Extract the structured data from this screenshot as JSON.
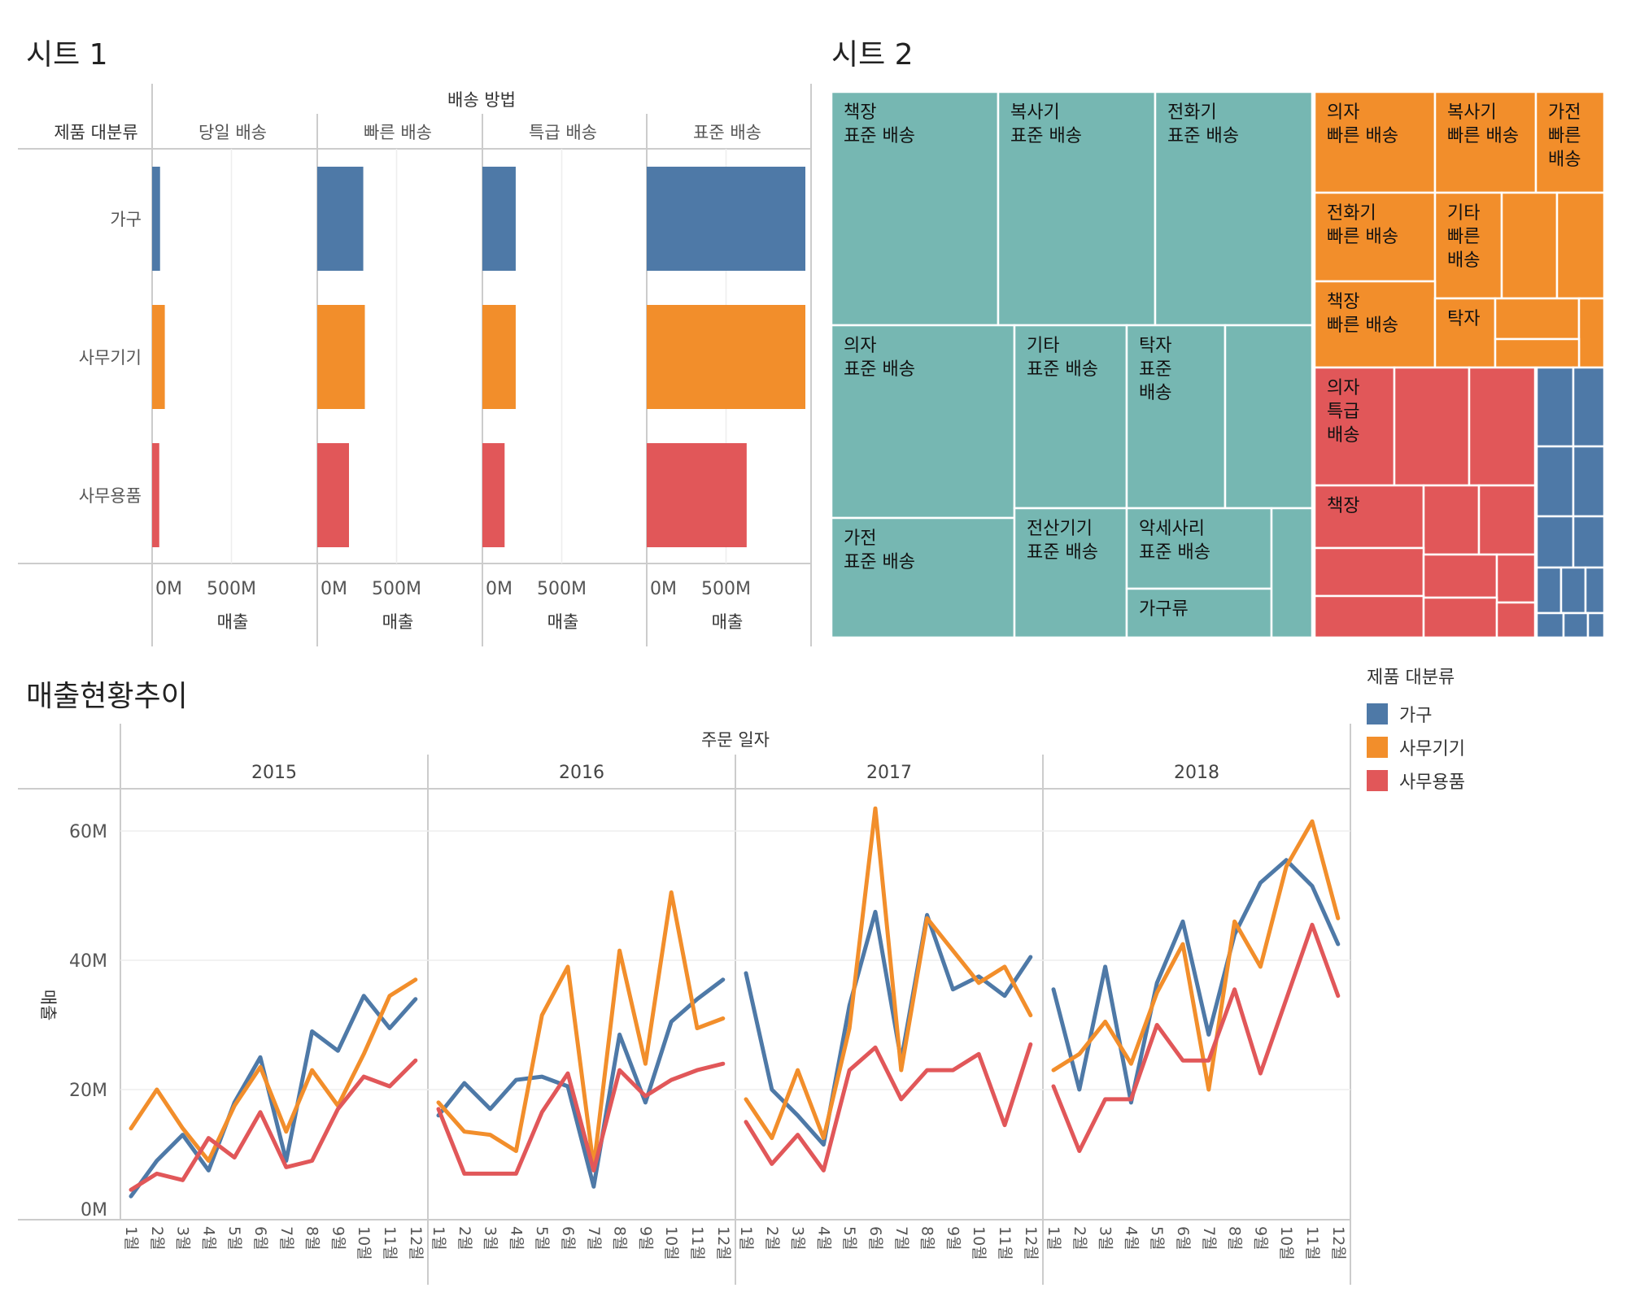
{
  "titles": {
    "sheet1": "시트 1",
    "sheet2": "시트 2",
    "sheet3": "매출현황추이"
  },
  "colors": {
    "furniture": "#4e79a7",
    "office_machines": "#f28e2b",
    "office_supplies": "#e15759",
    "treemap_standard": "#76b7b2"
  },
  "chart_data": [
    {
      "type": "bar",
      "column_header": "배송 방법",
      "row_header": "제품 대분류",
      "panels": [
        "당일 배송",
        "빠른 배송",
        "특급 배송",
        "표준 배송"
      ],
      "categories": [
        "가구",
        "사무기기",
        "사무용품"
      ],
      "values": [
        [
          50,
          290,
          210,
          1000
        ],
        [
          80,
          300,
          210,
          1000
        ],
        [
          45,
          200,
          140,
          630
        ]
      ],
      "xticks": [
        "0M",
        "500M"
      ],
      "xlabel": "매출",
      "xlim": [
        0,
        1050
      ]
    },
    {
      "type": "treemap",
      "groups": [
        {
          "category": "가구",
          "cells": [
            {
              "label": "책장\n표준 배송"
            },
            {
              "label": "복사기\n표준 배송"
            },
            {
              "label": "전화기\n표준 배송"
            },
            {
              "label": "의자\n표준 배송"
            },
            {
              "label": "기타\n표준 배송"
            },
            {
              "label": "탁자\n표준\n배송"
            },
            {
              "label": "가전\n표준 배송"
            },
            {
              "label": "전산기기\n표준 배송"
            },
            {
              "label": "악세사리\n표준 배송"
            },
            {
              "label": "가구류"
            }
          ]
        },
        {
          "category": "사무기기",
          "cells": [
            {
              "label": "의자\n빠른 배송"
            },
            {
              "label": "복사기\n빠른 배송"
            },
            {
              "label": "가전\n빠른\n배송"
            },
            {
              "label": "전화기\n빠른 배송"
            },
            {
              "label": "기타\n빠른\n배송"
            },
            {
              "label": "책장\n빠른 배송"
            },
            {
              "label": "탁자"
            }
          ]
        },
        {
          "category": "사무용품",
          "cells": [
            {
              "label": "의자\n특급\n배송"
            },
            {
              "label": "책장"
            }
          ]
        }
      ]
    },
    {
      "type": "line",
      "column_header": "주문 일자",
      "years": [
        "2015",
        "2016",
        "2017",
        "2018"
      ],
      "months": [
        "1월",
        "2월",
        "3월",
        "4월",
        "5월",
        "6월",
        "7월",
        "8월",
        "9월",
        "10월",
        "11월",
        "12월"
      ],
      "ylabel": "매출",
      "yticks": [
        "0M",
        "20M",
        "40M",
        "60M"
      ],
      "ylim": [
        0,
        70
      ],
      "series": [
        {
          "name": "가구",
          "values": [
            [
              3.5,
              9,
              13,
              7.5,
              18,
              25,
              9,
              29,
              26,
              34.5,
              29.5,
              34
            ],
            [
              16,
              21,
              17,
              21.5,
              22,
              20.5,
              5,
              28.5,
              18,
              30.5,
              34,
              37
            ],
            [
              38,
              20,
              16,
              11.5,
              33,
              47.5,
              24.5,
              47,
              35.5,
              37.5,
              34.5,
              40.5
            ],
            [
              35.5,
              20,
              39,
              18,
              36.5,
              46,
              28.5,
              44,
              52,
              55.5,
              51.5,
              42.5
            ]
          ]
        },
        {
          "name": "사무기기",
          "values": [
            [
              14,
              20,
              14,
              9,
              17.5,
              23.5,
              13.5,
              23,
              17.5,
              25.5,
              34.5,
              37
            ],
            [
              18,
              13.5,
              13,
              10.5,
              31.5,
              39,
              8,
              41.5,
              24,
              50.5,
              29.5,
              31
            ],
            [
              18.5,
              12.5,
              23,
              12.5,
              29.5,
              63.5,
              23,
              46.5,
              41.5,
              36.5,
              39,
              31.5
            ],
            [
              23,
              25.5,
              30.5,
              24,
              35,
              42.5,
              20,
              46,
              39,
              54.5,
              61.5,
              46.5
            ]
          ]
        },
        {
          "name": "사무용품",
          "values": [
            [
              4.5,
              7,
              6,
              12.5,
              9.5,
              16.5,
              8,
              9,
              17,
              22,
              20.5,
              24.5
            ],
            [
              17,
              7,
              7,
              7,
              16.5,
              22.5,
              7.5,
              23,
              19,
              21.5,
              23,
              24
            ],
            [
              15,
              8.5,
              13,
              7.5,
              23,
              26.5,
              18.5,
              23,
              23,
              25.5,
              14.5,
              27
            ],
            [
              20.5,
              10.5,
              18.5,
              18.5,
              30,
              24.5,
              24.5,
              35.5,
              22.5,
              34,
              45.5,
              34.5
            ]
          ]
        }
      ]
    }
  ],
  "legend": {
    "title": "제품 대분류",
    "items": [
      {
        "label": "가구",
        "color": "#4e79a7"
      },
      {
        "label": "사무기기",
        "color": "#f28e2b"
      },
      {
        "label": "사무용품",
        "color": "#e15759"
      }
    ]
  }
}
